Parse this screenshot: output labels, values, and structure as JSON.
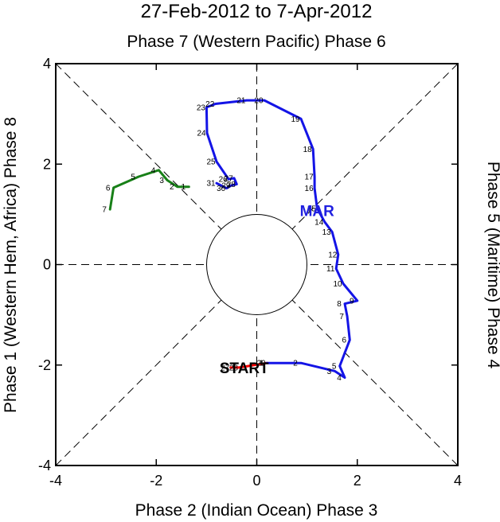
{
  "chart_data": {
    "type": "line",
    "title": "27-Feb-2012 to 7-Apr-2012",
    "top_label": "Phase 7 (Western Pacific) Phase 6",
    "bottom_label": "Phase 2 (Indian Ocean) Phase 3",
    "left_label": "Phase 1 (Western Hem, Africa) Phase 8",
    "right_label": "Phase 5 (Maritime) Phase 4",
    "xlim": [
      -4,
      4
    ],
    "ylim": [
      -4,
      4
    ],
    "x_ticks": [
      "-4",
      "-2",
      "0",
      "2",
      "4"
    ],
    "y_ticks": [
      "-4",
      "-2",
      "0",
      "2",
      "4"
    ],
    "annotations": [
      {
        "text": "START",
        "x": -0.25,
        "y": -2.05,
        "color": "#000000"
      },
      {
        "text": "MAR",
        "x": 1.2,
        "y": 1.08,
        "color": "#2020e0"
      }
    ],
    "series": [
      {
        "name": "Feb",
        "color": "#ff0000",
        "points": [
          {
            "label": "27",
            "x": -0.52,
            "y": -2.05
          },
          {
            "label": "28",
            "x": -0.35,
            "y": -2.05
          },
          {
            "label": "29",
            "x": 0.2,
            "y": -1.96
          }
        ]
      },
      {
        "name": "Mar",
        "color": "#1414e6",
        "points": [
          {
            "label": "1",
            "x": 0.2,
            "y": -1.96
          },
          {
            "label": "2",
            "x": 0.88,
            "y": -1.96
          },
          {
            "label": "3",
            "x": 1.55,
            "y": -2.12
          },
          {
            "label": "4",
            "x": 1.75,
            "y": -2.25
          },
          {
            "label": "5",
            "x": 1.65,
            "y": -2.02
          },
          {
            "label": "6",
            "x": 1.85,
            "y": -1.5
          },
          {
            "label": "7",
            "x": 1.8,
            "y": -1.03
          },
          {
            "label": "8",
            "x": 1.75,
            "y": -0.78
          },
          {
            "label": "9",
            "x": 2.0,
            "y": -0.72
          },
          {
            "label": "10",
            "x": 1.72,
            "y": -0.38
          },
          {
            "label": "11",
            "x": 1.58,
            "y": -0.08
          },
          {
            "label": "12",
            "x": 1.62,
            "y": 0.2
          },
          {
            "label": "13",
            "x": 1.5,
            "y": 0.65
          },
          {
            "label": "14",
            "x": 1.35,
            "y": 0.85
          },
          {
            "label": "15",
            "x": 1.2,
            "y": 1.12
          },
          {
            "label": "16",
            "x": 1.15,
            "y": 1.52
          },
          {
            "label": "17",
            "x": 1.15,
            "y": 1.75
          },
          {
            "label": "18",
            "x": 1.12,
            "y": 2.3
          },
          {
            "label": "19",
            "x": 0.88,
            "y": 2.9
          },
          {
            "label": "20",
            "x": 0.15,
            "y": 3.27
          },
          {
            "label": "21",
            "x": -0.2,
            "y": 3.27
          },
          {
            "label": "22",
            "x": -0.82,
            "y": 3.2
          },
          {
            "label": "23",
            "x": -1.0,
            "y": 3.13
          },
          {
            "label": "24",
            "x": -0.99,
            "y": 2.62
          },
          {
            "label": "25",
            "x": -0.8,
            "y": 2.05
          },
          {
            "label": "26",
            "x": -0.56,
            "y": 1.7
          },
          {
            "label": "27",
            "x": -0.45,
            "y": 1.72
          },
          {
            "label": "28",
            "x": -0.4,
            "y": 1.6
          },
          {
            "label": "29",
            "x": -0.5,
            "y": 1.58
          },
          {
            "label": "30",
            "x": -0.6,
            "y": 1.52
          },
          {
            "label": "31",
            "x": -0.8,
            "y": 1.62
          }
        ]
      },
      {
        "name": "Apr",
        "color": "#188018",
        "points": [
          {
            "label": "1",
            "x": -1.35,
            "y": 1.55
          },
          {
            "label": "2",
            "x": -1.58,
            "y": 1.55
          },
          {
            "label": "3",
            "x": -1.78,
            "y": 1.68
          },
          {
            "label": "4",
            "x": -1.95,
            "y": 1.88
          },
          {
            "label": "5",
            "x": -2.35,
            "y": 1.75
          },
          {
            "label": "6",
            "x": -2.85,
            "y": 1.53
          },
          {
            "label": "7",
            "x": -2.92,
            "y": 1.1
          }
        ]
      }
    ]
  }
}
